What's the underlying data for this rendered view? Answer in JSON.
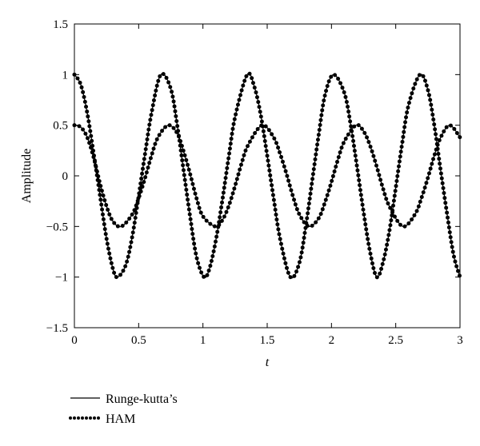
{
  "chart_data": {
    "type": "line",
    "title": "",
    "xlabel": "t",
    "ylabel": "Amplitude",
    "xlim": [
      0,
      3
    ],
    "ylim": [
      -1.5,
      1.5
    ],
    "xticks": [
      0,
      0.5,
      1,
      1.5,
      2,
      2.5,
      3
    ],
    "xtick_labels": [
      "0",
      "0.5",
      "1",
      "1.5",
      "2",
      "2.5",
      "3"
    ],
    "yticks": [
      -1.5,
      -1,
      -0.5,
      0,
      0.5,
      1,
      1.5
    ],
    "ytick_labels": [
      "−1.5",
      "−1",
      "−0.5",
      "0",
      "0.5",
      "1",
      "1.5"
    ],
    "grid": false,
    "legend_position": "bottom-left, below plot",
    "line_color": "#000000",
    "series": [
      {
        "name": "Runge-kutta’s",
        "style": "solid",
        "curves": [
          {
            "x": [
              0,
              0.05,
              0.1,
              0.15,
              0.2,
              0.25,
              0.3,
              0.336,
              0.4,
              0.45,
              0.5,
              0.55,
              0.6,
              0.672,
              0.75,
              0.8,
              0.85,
              0.9,
              0.95,
              1.008,
              1.05,
              1.1,
              1.15,
              1.2,
              1.25,
              1.344,
              1.4,
              1.45,
              1.5,
              1.55,
              1.6,
              1.68,
              1.75,
              1.8,
              1.85,
              1.9,
              1.95,
              2.016,
              2.1,
              2.15,
              2.2,
              2.25,
              2.3,
              2.352,
              2.4,
              2.45,
              2.5,
              2.55,
              2.6,
              2.688,
              2.75,
              2.8,
              2.85,
              2.9,
              2.95,
              3.0
            ],
            "y": [
              1.0,
              0.9,
              0.62,
              0.22,
              -0.2,
              -0.62,
              -0.92,
              -1.0,
              -0.88,
              -0.6,
              -0.2,
              0.22,
              0.62,
              1.0,
              0.86,
              0.5,
              0.05,
              -0.4,
              -0.8,
              -1.0,
              -0.92,
              -0.64,
              -0.25,
              0.18,
              0.58,
              1.0,
              0.88,
              0.6,
              0.2,
              -0.22,
              -0.62,
              -1.0,
              -0.86,
              -0.5,
              -0.05,
              0.4,
              0.8,
              1.0,
              0.82,
              0.5,
              0.08,
              -0.36,
              -0.75,
              -1.0,
              -0.86,
              -0.55,
              -0.12,
              0.32,
              0.7,
              1.0,
              0.85,
              0.5,
              0.05,
              -0.38,
              -0.78,
              -1.0
            ]
          },
          {
            "x": [
              0,
              0.05,
              0.1,
              0.15,
              0.2,
              0.25,
              0.3,
              0.365,
              0.45,
              0.5,
              0.55,
              0.6,
              0.65,
              0.73,
              0.8,
              0.85,
              0.9,
              0.95,
              1.0,
              1.095,
              1.15,
              1.2,
              1.25,
              1.3,
              1.35,
              1.46,
              1.55,
              1.6,
              1.65,
              1.7,
              1.75,
              1.825,
              1.9,
              1.95,
              2.0,
              2.05,
              2.1,
              2.19,
              2.25,
              2.3,
              2.35,
              2.4,
              2.45,
              2.555,
              2.65,
              2.7,
              2.75,
              2.8,
              2.85,
              2.92,
              3.0
            ],
            "y": [
              0.5,
              0.48,
              0.38,
              0.18,
              -0.08,
              -0.3,
              -0.45,
              -0.5,
              -0.38,
              -0.22,
              -0.02,
              0.2,
              0.38,
              0.5,
              0.42,
              0.24,
              0.02,
              -0.22,
              -0.4,
              -0.5,
              -0.44,
              -0.3,
              -0.1,
              0.12,
              0.3,
              0.5,
              0.38,
              0.22,
              0.02,
              -0.2,
              -0.38,
              -0.5,
              -0.42,
              -0.26,
              -0.06,
              0.16,
              0.34,
              0.5,
              0.44,
              0.3,
              0.1,
              -0.12,
              -0.3,
              -0.5,
              -0.38,
              -0.22,
              -0.02,
              0.2,
              0.38,
              0.5,
              0.38
            ]
          }
        ]
      },
      {
        "name": "HAM",
        "style": "dotted"
      }
    ]
  }
}
